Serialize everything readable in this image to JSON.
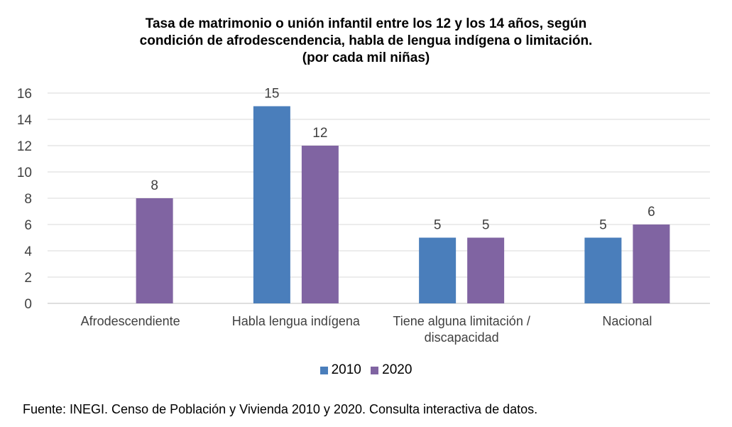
{
  "chart_data": {
    "type": "bar",
    "title_lines": [
      "Tasa de matrimonio o unión infantil entre los 12 y los 14 años, según",
      "condición de afrodescendencia, habla de lengua indígena o limitación.",
      "(por cada mil niñas)"
    ],
    "categories": [
      [
        "Afrodescendiente"
      ],
      [
        "Habla lengua indígena"
      ],
      [
        "Tiene alguna limitación /",
        "discapacidad"
      ],
      [
        "Nacional"
      ]
    ],
    "series": [
      {
        "name": "2010",
        "color": "#4a7ebb",
        "values": [
          null,
          15,
          5,
          5
        ]
      },
      {
        "name": "2020",
        "color": "#8064a2",
        "values": [
          8,
          12,
          5,
          6
        ]
      }
    ],
    "ylim": [
      0,
      16
    ],
    "yticks": [
      0,
      2,
      4,
      6,
      8,
      10,
      12,
      14,
      16
    ],
    "grid": true,
    "legend_position": "bottom"
  },
  "legend": {
    "items": [
      "2010",
      "2020"
    ]
  },
  "source": "Fuente: INEGI. Censo de Población y Vivienda 2010 y 2020. Consulta interactiva de datos."
}
